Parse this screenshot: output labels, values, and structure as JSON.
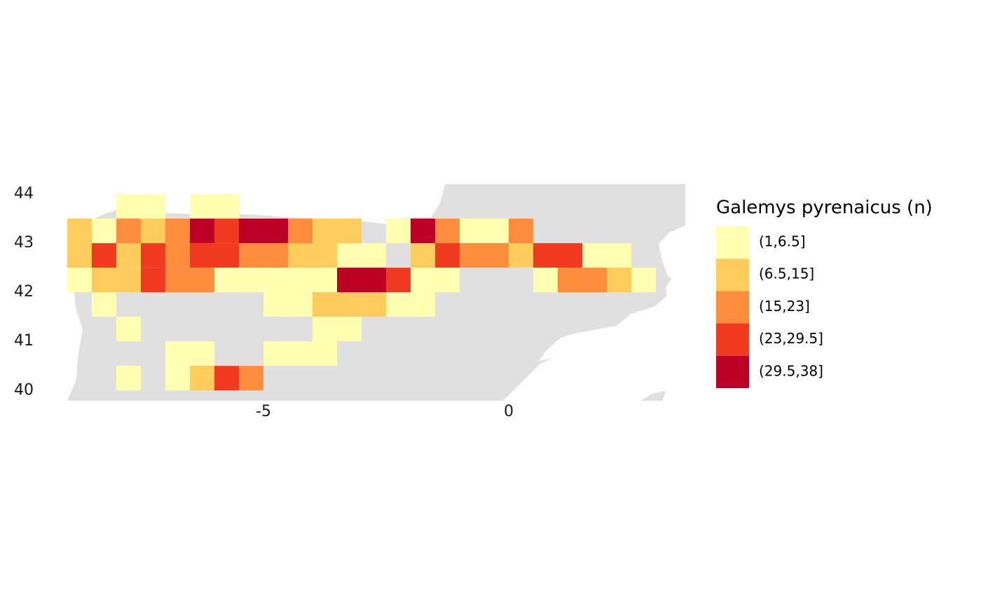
{
  "chart_data": {
    "type": "grid-map",
    "xlim": [
      -9,
      3.6
    ],
    "ylim": [
      39.79,
      44.2
    ],
    "xticks": [
      -5,
      0
    ],
    "yticks": [
      40,
      41,
      42,
      43,
      44
    ],
    "cell_size": 0.5,
    "legend": {
      "title": "Galemys pyrenaicus (n)",
      "items": [
        {
          "label": "(1,6.5]",
          "color": "#FFFFB2"
        },
        {
          "label": "(6.5,15]",
          "color": "#FECC5C"
        },
        {
          "label": "(15,23]",
          "color": "#FD8D3C"
        },
        {
          "label": "(23,29.5]",
          "color": "#F03B20"
        },
        {
          "label": "(29.5,38]",
          "color": "#BD0026"
        }
      ]
    },
    "cells": [
      {
        "x": -8,
        "y": 43.5,
        "bin": 0
      },
      {
        "x": -7.5,
        "y": 43.5,
        "bin": 0
      },
      {
        "x": -6.5,
        "y": 43.5,
        "bin": 0
      },
      {
        "x": -6,
        "y": 43.5,
        "bin": 0
      },
      {
        "x": -9,
        "y": 43,
        "bin": 1
      },
      {
        "x": -8.5,
        "y": 43,
        "bin": 0
      },
      {
        "x": -8,
        "y": 43,
        "bin": 2
      },
      {
        "x": -7.5,
        "y": 43,
        "bin": 1
      },
      {
        "x": -7,
        "y": 43,
        "bin": 2
      },
      {
        "x": -6.5,
        "y": 43,
        "bin": 4
      },
      {
        "x": -6,
        "y": 43,
        "bin": 3
      },
      {
        "x": -5.5,
        "y": 43,
        "bin": 4
      },
      {
        "x": -5,
        "y": 43,
        "bin": 4
      },
      {
        "x": -4.5,
        "y": 43,
        "bin": 2
      },
      {
        "x": -4,
        "y": 43,
        "bin": 1
      },
      {
        "x": -3.5,
        "y": 43,
        "bin": 1
      },
      {
        "x": -2.5,
        "y": 43,
        "bin": 0
      },
      {
        "x": -2,
        "y": 43,
        "bin": 4
      },
      {
        "x": -1.5,
        "y": 43,
        "bin": 2
      },
      {
        "x": -1,
        "y": 43,
        "bin": 0
      },
      {
        "x": -0.5,
        "y": 43,
        "bin": 0
      },
      {
        "x": 0,
        "y": 43,
        "bin": 2
      },
      {
        "x": -9,
        "y": 42.5,
        "bin": 1
      },
      {
        "x": -8.5,
        "y": 42.5,
        "bin": 3
      },
      {
        "x": -8,
        "y": 42.5,
        "bin": 1
      },
      {
        "x": -7.5,
        "y": 42.5,
        "bin": 3
      },
      {
        "x": -7,
        "y": 42.5,
        "bin": 2
      },
      {
        "x": -6.5,
        "y": 42.5,
        "bin": 3
      },
      {
        "x": -6,
        "y": 42.5,
        "bin": 3
      },
      {
        "x": -5.5,
        "y": 42.5,
        "bin": 2
      },
      {
        "x": -5,
        "y": 42.5,
        "bin": 2
      },
      {
        "x": -4.5,
        "y": 42.5,
        "bin": 1
      },
      {
        "x": -4,
        "y": 42.5,
        "bin": 1
      },
      {
        "x": -3.5,
        "y": 42.5,
        "bin": 0
      },
      {
        "x": -3,
        "y": 42.5,
        "bin": 0
      },
      {
        "x": -2,
        "y": 42.5,
        "bin": 1
      },
      {
        "x": -1.5,
        "y": 42.5,
        "bin": 3
      },
      {
        "x": -1,
        "y": 42.5,
        "bin": 2
      },
      {
        "x": -0.5,
        "y": 42.5,
        "bin": 2
      },
      {
        "x": 0,
        "y": 42.5,
        "bin": 1
      },
      {
        "x": 0.5,
        "y": 42.5,
        "bin": 3
      },
      {
        "x": 1,
        "y": 42.5,
        "bin": 3
      },
      {
        "x": 1.5,
        "y": 42.5,
        "bin": 0
      },
      {
        "x": 2,
        "y": 42.5,
        "bin": 0
      },
      {
        "x": -9,
        "y": 42,
        "bin": 0
      },
      {
        "x": -8.5,
        "y": 42,
        "bin": 1
      },
      {
        "x": -8,
        "y": 42,
        "bin": 1
      },
      {
        "x": -7.5,
        "y": 42,
        "bin": 3
      },
      {
        "x": -7,
        "y": 42,
        "bin": 2
      },
      {
        "x": -6.5,
        "y": 42,
        "bin": 2
      },
      {
        "x": -6,
        "y": 42,
        "bin": 0
      },
      {
        "x": -5.5,
        "y": 42,
        "bin": 0
      },
      {
        "x": -5,
        "y": 42,
        "bin": 0
      },
      {
        "x": -4.5,
        "y": 42,
        "bin": 0
      },
      {
        "x": -4,
        "y": 42,
        "bin": 0
      },
      {
        "x": -3.5,
        "y": 42,
        "bin": 4
      },
      {
        "x": -3,
        "y": 42,
        "bin": 4
      },
      {
        "x": -2.5,
        "y": 42,
        "bin": 3
      },
      {
        "x": -2,
        "y": 42,
        "bin": 0
      },
      {
        "x": -1.5,
        "y": 42,
        "bin": 0
      },
      {
        "x": 0.5,
        "y": 42,
        "bin": 0
      },
      {
        "x": 1,
        "y": 42,
        "bin": 2
      },
      {
        "x": 1.5,
        "y": 42,
        "bin": 2
      },
      {
        "x": 2,
        "y": 42,
        "bin": 1
      },
      {
        "x": 2.5,
        "y": 42,
        "bin": 0
      },
      {
        "x": -8.5,
        "y": 41.5,
        "bin": 0
      },
      {
        "x": -5,
        "y": 41.5,
        "bin": 0
      },
      {
        "x": -4.5,
        "y": 41.5,
        "bin": 0
      },
      {
        "x": -4,
        "y": 41.5,
        "bin": 1
      },
      {
        "x": -3.5,
        "y": 41.5,
        "bin": 1
      },
      {
        "x": -3,
        "y": 41.5,
        "bin": 1
      },
      {
        "x": -2.5,
        "y": 41.5,
        "bin": 0
      },
      {
        "x": -2,
        "y": 41.5,
        "bin": 0
      },
      {
        "x": -8,
        "y": 41,
        "bin": 0
      },
      {
        "x": -4,
        "y": 41,
        "bin": 0
      },
      {
        "x": -3.5,
        "y": 41,
        "bin": 0
      },
      {
        "x": -7,
        "y": 40.5,
        "bin": 0
      },
      {
        "x": -6.5,
        "y": 40.5,
        "bin": 0
      },
      {
        "x": -5,
        "y": 40.5,
        "bin": 0
      },
      {
        "x": -4.5,
        "y": 40.5,
        "bin": 0
      },
      {
        "x": -4,
        "y": 40.5,
        "bin": 0
      },
      {
        "x": -8,
        "y": 40,
        "bin": 0
      },
      {
        "x": -7,
        "y": 40,
        "bin": 0
      },
      {
        "x": -6.5,
        "y": 40,
        "bin": 1
      },
      {
        "x": -6,
        "y": 40,
        "bin": 3
      },
      {
        "x": -5.5,
        "y": 40,
        "bin": 2
      }
    ]
  }
}
